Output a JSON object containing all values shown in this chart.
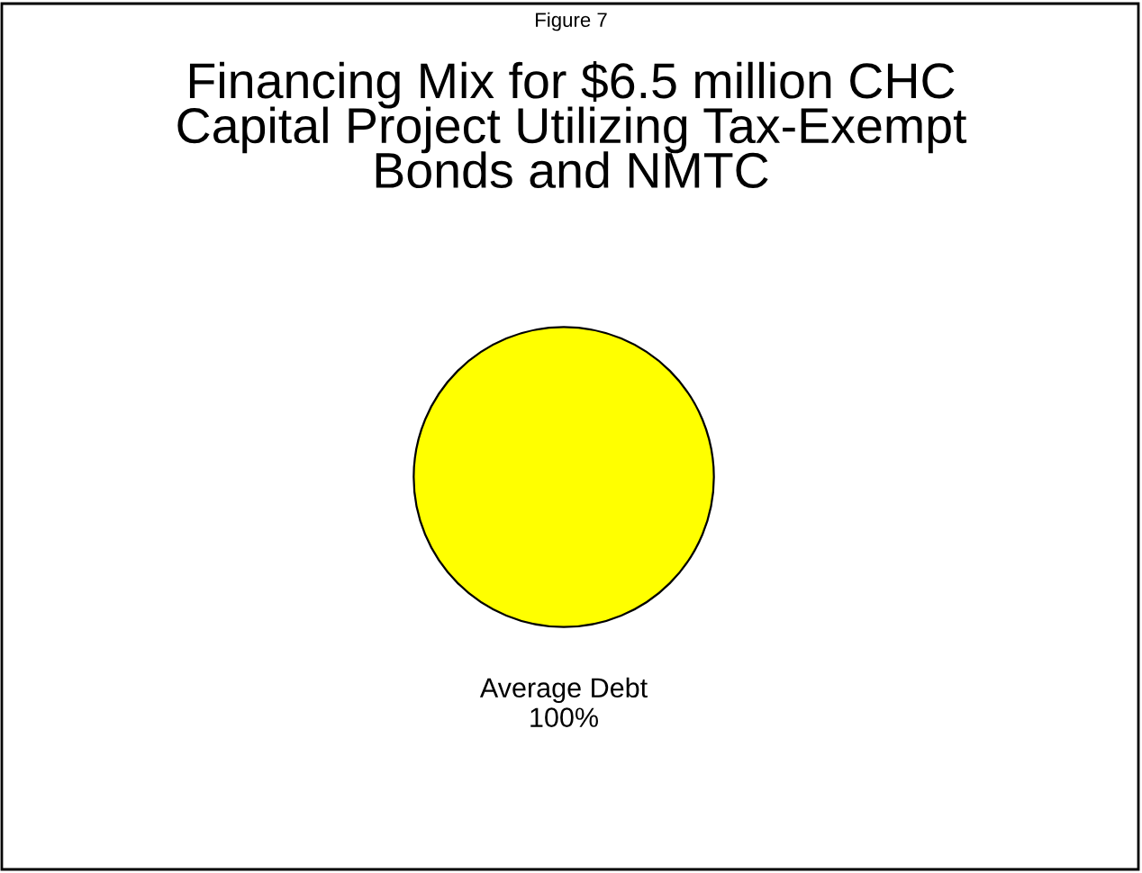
{
  "chart_data": {
    "type": "pie",
    "title": "Financing Mix for $6.5 million CHC Capital Project Utilizing Tax-Exempt Bonds and NMTC",
    "annotations": [
      "Figure 7"
    ],
    "categories": [
      "Average Debt"
    ],
    "values": [
      100
    ],
    "colors": [
      "#ffff00"
    ],
    "value_labels": [
      "100%"
    ]
  }
}
